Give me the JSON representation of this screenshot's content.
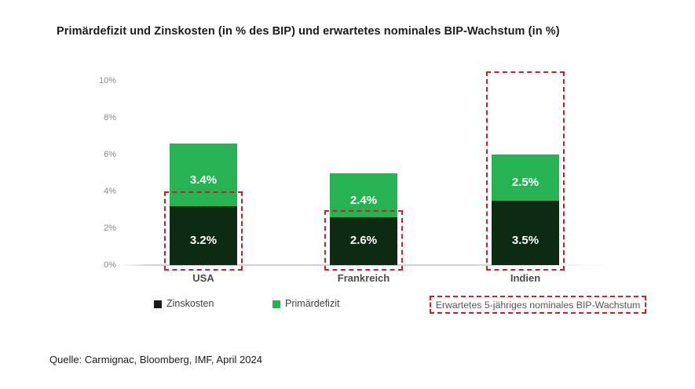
{
  "source_note": "Quelle: Carmignac, Bloomberg, IMF, April 2024",
  "colors": {
    "primaerdefizit_green": "#27b254",
    "zinskosten_dark": "#0d2a12",
    "growth_box_red": "#c81e2e",
    "axis_tick_text": "#8a8a8a",
    "category_text": "#4b4b4b",
    "legend_text": "#3f3f3f",
    "title_text": "#1c1c1c",
    "baseline_gray": "#d2d2d2",
    "bar_value_text": "#ffffff"
  },
  "chart_data": {
    "type": "bar",
    "stacked": true,
    "title": "Primärdefizit und Zinskosten (in % des BIP) und erwartetes nominales BIP-Wachstum (in %)",
    "categories": [
      "USA",
      "Frankreich",
      "Indien"
    ],
    "series": [
      {
        "name": "Zinskosten",
        "color": "#0d2a12",
        "values": [
          3.2,
          2.6,
          3.5
        ]
      },
      {
        "name": "Primärdefizit",
        "color": "#27b254",
        "values": [
          3.4,
          2.4,
          2.5
        ]
      }
    ],
    "bar_value_labels": [
      [
        "3.2%",
        "2.6%",
        "3.5%"
      ],
      [
        "3.4%",
        "2.4%",
        "2.5%"
      ]
    ],
    "expected_growth_box": {
      "label": "Erwartetes 5-jähriges nominales BIP-Wachstum",
      "style": "red-dashed-outline",
      "values_estimated_pct": [
        4.0,
        3.0,
        10.5
      ]
    },
    "xlabel": "",
    "ylabel": "",
    "ylim": [
      0,
      10
    ],
    "yticks": [
      {
        "value": 0,
        "label": "0%"
      },
      {
        "value": 2,
        "label": "2%"
      },
      {
        "value": 4,
        "label": "4%"
      },
      {
        "value": 6,
        "label": "6%"
      },
      {
        "value": 8,
        "label": "8%"
      },
      {
        "value": 10,
        "label": "10%"
      }
    ],
    "grid": false,
    "legend_position": "bottom"
  },
  "legend": {
    "items": [
      {
        "label": "Zinskosten",
        "swatch": "dark-square",
        "swatch_color": "#1a1a1a"
      },
      {
        "label": "Primärdefizit",
        "swatch": "green-square",
        "swatch_color": "#27b254"
      },
      {
        "label": "Erwartetes 5-jähriges nominales BIP-Wachstum",
        "swatch": "red-dashed-box",
        "swatch_color": "#c81e2e"
      }
    ]
  }
}
